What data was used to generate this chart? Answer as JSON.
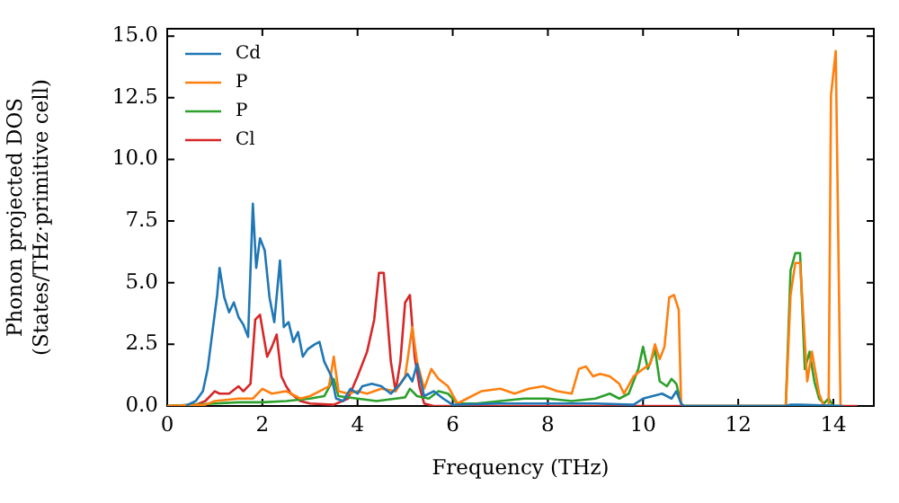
{
  "chart_data": {
    "type": "line",
    "xlabel": "Frequency (THz)",
    "ylabel": "Phonon projected DOS\n(States/THz·primitive cell)",
    "xlim": [
      0,
      14.85
    ],
    "xticks": [
      0,
      2,
      4,
      6,
      8,
      10,
      12,
      14
    ],
    "ylim": [
      0,
      15.3
    ],
    "yticks": [
      {
        "value": 0,
        "label": "0.0"
      },
      {
        "value": 2.5,
        "label": "2.5"
      },
      {
        "value": 5,
        "label": "5.0"
      },
      {
        "value": 7.5,
        "label": "7.5"
      },
      {
        "value": 10,
        "label": "10.0"
      },
      {
        "value": 12.5,
        "label": "12.5"
      },
      {
        "value": 15,
        "label": "15.0"
      }
    ],
    "grid": false,
    "legend": "top left",
    "marker": "none",
    "line_style": "solid",
    "series": [
      {
        "name": "Cd",
        "color": "#1f77b4",
        "x": [
          0.4,
          0.6,
          0.75,
          0.85,
          0.95,
          1.05,
          1.1,
          1.2,
          1.3,
          1.4,
          1.5,
          1.6,
          1.7,
          1.8,
          1.87,
          1.95,
          2.05,
          2.15,
          2.25,
          2.37,
          2.45,
          2.55,
          2.65,
          2.75,
          2.85,
          2.95,
          3.1,
          3.2,
          3.3,
          3.45,
          3.55,
          3.7,
          3.85,
          4.0,
          4.1,
          4.3,
          4.5,
          4.7,
          4.9,
          5.05,
          5.15,
          5.25,
          5.4,
          5.6,
          5.8,
          6.0,
          7,
          8,
          9,
          9.8,
          10.0,
          10.2,
          10.4,
          10.6,
          10.7,
          10.8,
          10.85,
          13.0,
          13.1,
          13.3,
          14.2
        ],
        "values": [
          0.02,
          0.2,
          0.6,
          1.5,
          3.0,
          4.5,
          5.6,
          4.4,
          3.8,
          4.2,
          3.6,
          3.3,
          2.8,
          8.2,
          5.6,
          6.8,
          6.3,
          4.4,
          3.4,
          5.9,
          3.2,
          3.4,
          2.6,
          3.0,
          2.0,
          2.3,
          2.5,
          2.6,
          1.8,
          1.2,
          0.3,
          0.2,
          0.7,
          0.5,
          0.8,
          0.9,
          0.8,
          0.5,
          0.9,
          1.3,
          1.0,
          1.7,
          0.4,
          0.6,
          0.3,
          0.05,
          0.1,
          0.1,
          0.1,
          0.05,
          0.3,
          0.4,
          0.5,
          0.3,
          0.6,
          0.1,
          0,
          0,
          0.05,
          0.05,
          0
        ]
      },
      {
        "name": "P",
        "color": "#ff7f0e",
        "x": [
          0,
          0.8,
          1.0,
          1.5,
          1.8,
          2.0,
          2.2,
          2.5,
          2.8,
          3.0,
          3.2,
          3.4,
          3.5,
          3.6,
          3.8,
          4.0,
          4.2,
          4.5,
          4.8,
          5.0,
          5.15,
          5.25,
          5.4,
          5.55,
          5.7,
          5.9,
          6.1,
          6.3,
          6.6,
          7.0,
          7.3,
          7.6,
          7.9,
          8.2,
          8.5,
          8.65,
          8.8,
          8.95,
          9.1,
          9.3,
          9.5,
          9.6,
          9.8,
          10.0,
          10.15,
          10.25,
          10.35,
          10.45,
          10.55,
          10.65,
          10.75,
          10.8,
          10.85,
          13.0,
          13.1,
          13.2,
          13.3,
          13.45,
          13.55,
          13.7,
          13.8,
          13.9,
          13.95,
          14.05,
          14.15
        ],
        "values": [
          0,
          0.05,
          0.2,
          0.3,
          0.3,
          0.7,
          0.5,
          0.6,
          0.3,
          0.4,
          0.6,
          0.8,
          2.0,
          0.6,
          0.5,
          0.6,
          0.5,
          0.7,
          0.6,
          1.2,
          3.2,
          1.8,
          0.7,
          1.5,
          1.1,
          0.8,
          0.1,
          0.3,
          0.6,
          0.7,
          0.5,
          0.7,
          0.8,
          0.6,
          0.5,
          1.5,
          1.6,
          1.2,
          1.3,
          1.2,
          0.9,
          0.5,
          1.2,
          1.5,
          1.7,
          2.5,
          1.9,
          2.4,
          4.4,
          4.5,
          3.9,
          0.1,
          0,
          0,
          4.5,
          5.8,
          5.8,
          1.0,
          2.2,
          0.5,
          0,
          0,
          12.6,
          14.4,
          0
        ]
      },
      {
        "name": "P",
        "color": "#2ca02c",
        "x": [
          0,
          1.0,
          1.5,
          2.0,
          2.5,
          3.0,
          3.3,
          3.5,
          3.6,
          4.0,
          4.4,
          4.8,
          5.0,
          5.1,
          5.25,
          5.5,
          5.7,
          5.9,
          6.1,
          6.5,
          7,
          7.5,
          8.0,
          8.5,
          9,
          9.3,
          9.5,
          9.7,
          9.9,
          10.0,
          10.1,
          10.2,
          10.25,
          10.35,
          10.5,
          10.6,
          10.7,
          10.8,
          10.85,
          13.0,
          13.1,
          13.2,
          13.3,
          13.4,
          13.5,
          13.6,
          13.7,
          13.8,
          13.9,
          14.0
        ],
        "values": [
          0,
          0.1,
          0.15,
          0.15,
          0.2,
          0.3,
          0.4,
          1.1,
          0.4,
          0.3,
          0.2,
          0.3,
          0.35,
          0.7,
          0.4,
          0.3,
          0.6,
          0.5,
          0.1,
          0.1,
          0.2,
          0.3,
          0.3,
          0.2,
          0.3,
          0.5,
          0.3,
          0.5,
          1.5,
          2.4,
          1.5,
          2.0,
          2.3,
          1.0,
          0.8,
          1.1,
          0.9,
          0.1,
          0,
          0,
          5.5,
          6.2,
          6.2,
          1.5,
          2.2,
          1.0,
          0.3,
          0.1,
          0.3,
          0
        ]
      },
      {
        "name": "Cl",
        "color": "#d62728",
        "x": [
          0,
          0.6,
          0.8,
          1.0,
          1.1,
          1.3,
          1.5,
          1.6,
          1.75,
          1.85,
          1.95,
          2.1,
          2.2,
          2.3,
          2.4,
          2.5,
          2.6,
          2.8,
          3.0,
          3.5,
          3.8,
          4.0,
          4.2,
          4.35,
          4.45,
          4.55,
          4.7,
          4.8,
          4.9,
          5.0,
          5.1,
          5.2,
          5.3,
          5.4,
          5.6,
          14.5
        ],
        "values": [
          0,
          0.05,
          0.2,
          0.6,
          0.5,
          0.5,
          0.8,
          0.6,
          0.9,
          3.5,
          3.7,
          2.0,
          2.4,
          2.9,
          1.2,
          0.8,
          0.5,
          0.2,
          0.1,
          0.05,
          0.3,
          1.2,
          2.2,
          3.5,
          5.4,
          5.4,
          1.8,
          0.6,
          1.8,
          4.2,
          4.5,
          2.0,
          0.8,
          0.1,
          0,
          0
        ]
      }
    ]
  }
}
